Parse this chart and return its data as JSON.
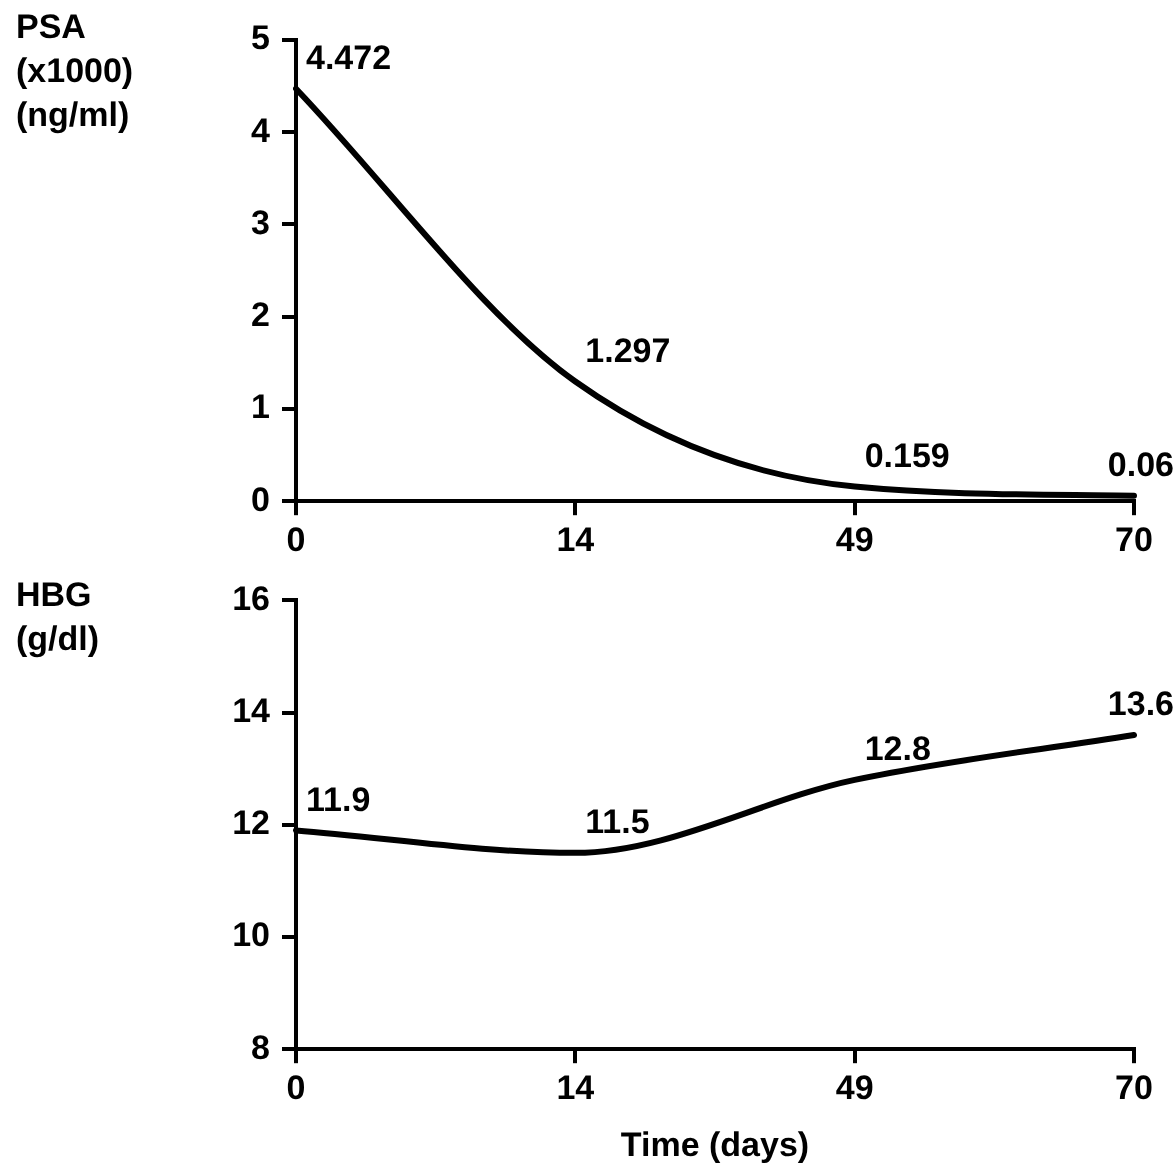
{
  "chart_data": [
    {
      "type": "line",
      "ylabel": "PSA (x1000) (ng/ml)",
      "categories": [
        "0",
        "14",
        "49",
        "70"
      ],
      "series": [
        {
          "color": "#000000",
          "values": [
            4.472,
            1.297,
            0.159,
            0.06
          ]
        }
      ],
      "ylim": [
        0,
        5
      ],
      "yticks": [
        0,
        1,
        2,
        3,
        4,
        5
      ],
      "data_labels": true,
      "legend": false,
      "grid": false,
      "marker": "none"
    },
    {
      "type": "line",
      "ylabel": "HBG (g/dl)",
      "xlabel": "Time (days)",
      "categories": [
        "0",
        "14",
        "49",
        "70"
      ],
      "series": [
        {
          "color": "#000000",
          "values": [
            11.9,
            11.5,
            12.8,
            13.6
          ]
        }
      ],
      "ylim": [
        8,
        16
      ],
      "yticks": [
        8,
        10,
        12,
        14,
        16
      ],
      "data_labels": true,
      "legend": false,
      "grid": false,
      "marker": "none"
    }
  ]
}
